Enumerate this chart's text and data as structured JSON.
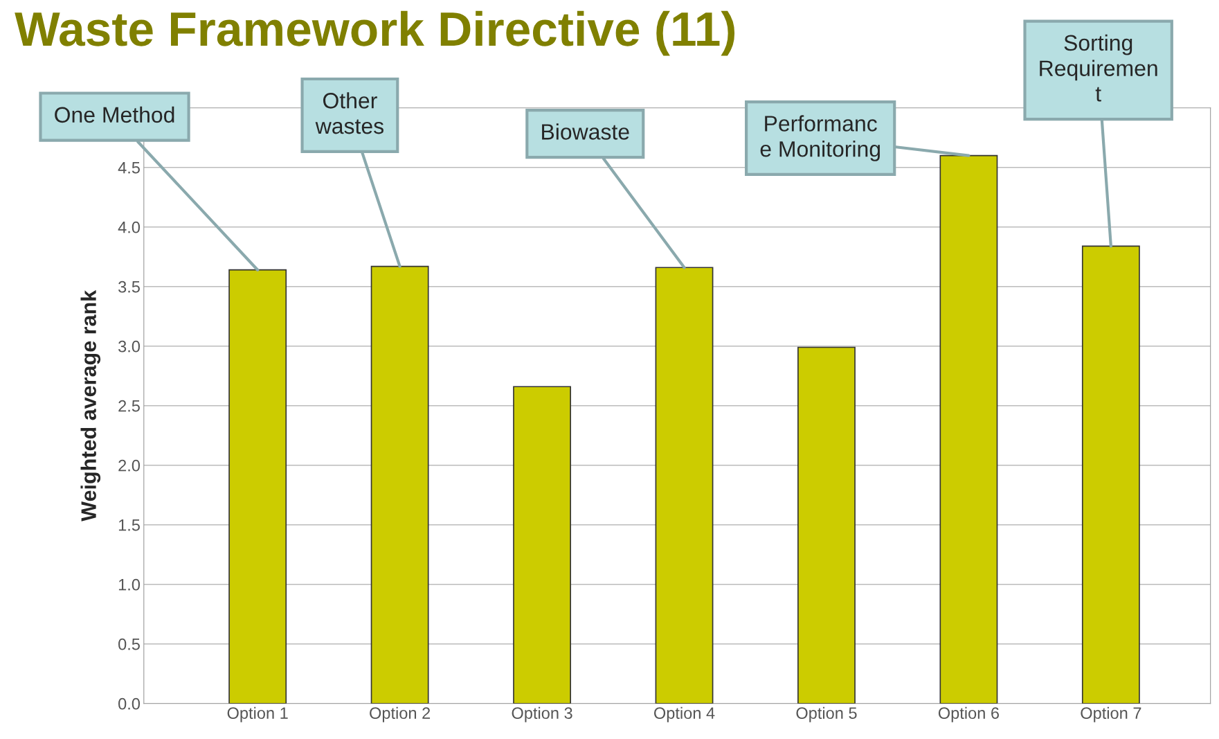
{
  "chart_data": {
    "type": "bar",
    "title": "Waste Framework Directive (11)",
    "ylabel": "Weighted average rank",
    "categories": [
      "Option 1",
      "Option 2",
      "Option 3",
      "Option 4",
      "Option 5",
      "Option 6",
      "Option 7"
    ],
    "values": [
      3.64,
      3.67,
      2.66,
      3.66,
      2.99,
      4.6,
      3.84
    ],
    "color": "#cccc00",
    "ylim": [
      0,
      5
    ],
    "yticks": [
      {
        "value": 0,
        "label": "0.0"
      },
      0.5,
      {
        "value": 1,
        "label": "1.0"
      },
      1.5,
      {
        "value": 2,
        "label": "2.0"
      },
      2.5,
      {
        "value": 3,
        "label": "3.0"
      },
      3.5,
      {
        "value": 4,
        "label": "4.0"
      },
      4.5
    ],
    "grid": "y",
    "annotations": [
      {
        "text": "One Method",
        "x": "Option 1",
        "y": 3.64
      },
      {
        "text": "Other\nwastes",
        "x": "Option 2",
        "y": 3.67
      },
      {
        "text": "Biowaste",
        "x": "Option 4",
        "y": 3.66
      },
      {
        "text": "Performanc\ne Monitoring",
        "x": "Option 6",
        "y": 4.6
      },
      {
        "text": "Sorting\nRequiremen\nt",
        "x": "Option 7",
        "y": 3.84
      }
    ]
  }
}
